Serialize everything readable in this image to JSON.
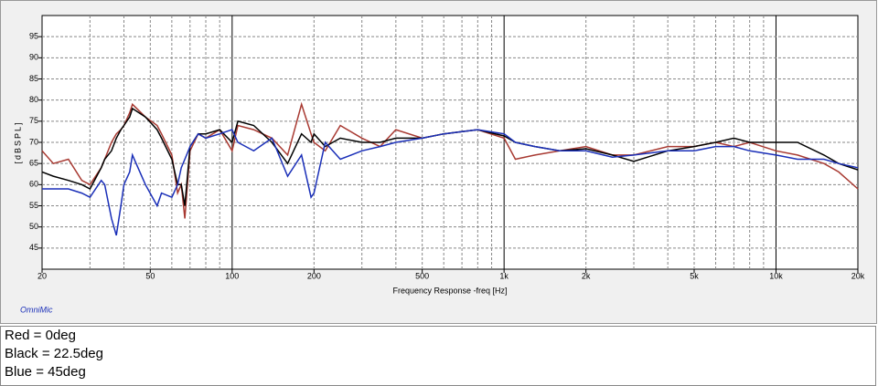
{
  "chart_data": {
    "type": "line",
    "xlabel": "Frequency Response -freq [Hz]",
    "ylabel": "[dBSPL]",
    "note": "OmniMic",
    "log_x": true,
    "grid": true,
    "xlim": [
      20,
      20000
    ],
    "ylim": [
      40,
      100
    ],
    "xticks": [
      20,
      50,
      100,
      200,
      500,
      {
        "value": 1000,
        "label": "1k"
      },
      {
        "value": 2000,
        "label": "2k"
      },
      {
        "value": 5000,
        "label": "5k"
      },
      {
        "value": 10000,
        "label": "10k"
      },
      {
        "value": 20000,
        "label": "20k"
      }
    ],
    "yticks": [
      45,
      50,
      55,
      60,
      65,
      70,
      75,
      80,
      85,
      90,
      95
    ],
    "x": [
      20,
      22,
      25,
      28,
      30,
      33,
      34,
      36,
      37.5,
      39,
      40,
      42,
      43,
      48,
      53,
      55,
      60,
      63,
      65,
      67,
      70,
      75,
      80,
      90,
      100,
      105,
      120,
      140,
      160,
      180,
      195,
      200,
      220,
      250,
      300,
      350,
      400,
      500,
      600,
      800,
      1000,
      1100,
      1300,
      1600,
      2000,
      2500,
      3000,
      4000,
      5000,
      6000,
      7000,
      8000,
      10000,
      12000,
      15000,
      17000,
      20000
    ],
    "series": [
      {
        "name": "Red = 0deg",
        "color": "#a83a32",
        "values": [
          68,
          65,
          66,
          61,
          60,
          64,
          66,
          70,
          72,
          73,
          74,
          77,
          79,
          76,
          74,
          72,
          67,
          58,
          60,
          52,
          68,
          72,
          71,
          73,
          68,
          74,
          73,
          71,
          67,
          79,
          72,
          70,
          68,
          74,
          71,
          69,
          73,
          71,
          72,
          73,
          71,
          66,
          67,
          68,
          69,
          67,
          67,
          69,
          69,
          70,
          69,
          70,
          68,
          67,
          65,
          63,
          59
        ]
      },
      {
        "name": "Black = 22.5deg",
        "color": "#000000",
        "values": [
          63,
          62,
          61,
          60,
          59,
          64,
          66,
          68,
          71,
          73,
          74,
          76,
          78,
          76,
          73,
          71,
          66,
          60,
          60,
          55,
          69,
          72,
          72,
          73,
          70,
          75,
          74,
          70,
          65,
          72,
          70,
          72,
          69,
          71,
          70,
          70,
          71,
          71,
          72,
          73,
          71.5,
          70,
          69,
          68,
          68.5,
          67,
          65.5,
          68,
          69,
          70,
          71,
          70,
          70,
          70,
          67,
          65,
          63.5
        ]
      },
      {
        "name": "Blue = 45deg",
        "color": "#1a2fb8",
        "values": [
          59,
          59,
          59,
          58,
          57,
          61,
          60,
          52,
          48,
          55,
          60,
          63,
          67,
          60,
          55,
          58,
          57,
          60,
          64,
          66,
          69,
          72,
          71,
          72,
          73,
          70,
          68,
          71,
          62,
          67,
          57,
          58,
          70,
          66,
          68,
          69,
          70,
          71,
          72,
          73,
          72,
          70,
          69,
          68,
          68,
          66.5,
          67,
          68,
          68,
          69,
          69,
          68,
          67,
          66,
          66,
          65,
          64
        ]
      }
    ]
  }
}
